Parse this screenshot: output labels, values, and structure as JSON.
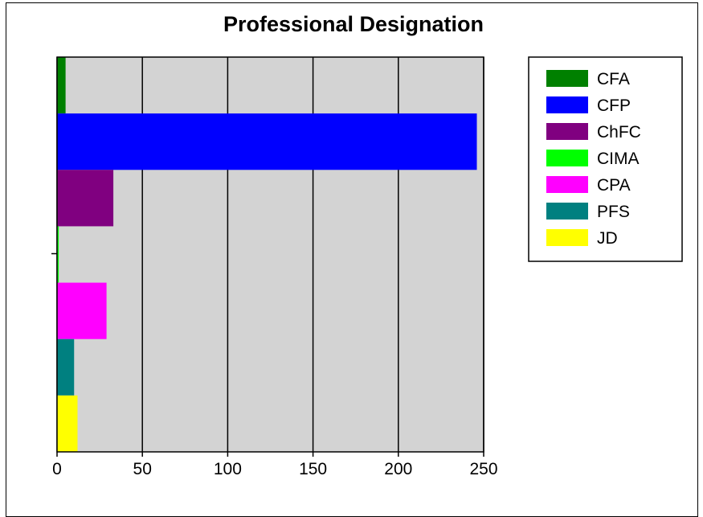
{
  "chart_data": {
    "type": "bar",
    "orientation": "horizontal",
    "title": "Professional Designation",
    "xlabel": "",
    "ylabel": "",
    "xlim": [
      0,
      250
    ],
    "xticks": [
      0,
      50,
      100,
      150,
      200,
      250
    ],
    "xtick_labels": [
      "0",
      "50",
      "100",
      "150",
      "200",
      "250"
    ],
    "grid": "vertical",
    "legend_position": "right",
    "plot_background": "#d3d3d3",
    "series": [
      {
        "name": "CFA",
        "values": [
          5
        ],
        "color": "#008000"
      },
      {
        "name": "CFP",
        "values": [
          246
        ],
        "color": "#0000ff"
      },
      {
        "name": "ChFC",
        "values": [
          33
        ],
        "color": "#800080"
      },
      {
        "name": "CIMA",
        "values": [
          1
        ],
        "color": "#00ff00"
      },
      {
        "name": "CPA",
        "values": [
          29
        ],
        "color": "#ff00ff"
      },
      {
        "name": "PFS",
        "values": [
          10
        ],
        "color": "#008080"
      },
      {
        "name": "JD",
        "values": [
          12
        ],
        "color": "#ffff00"
      }
    ]
  }
}
